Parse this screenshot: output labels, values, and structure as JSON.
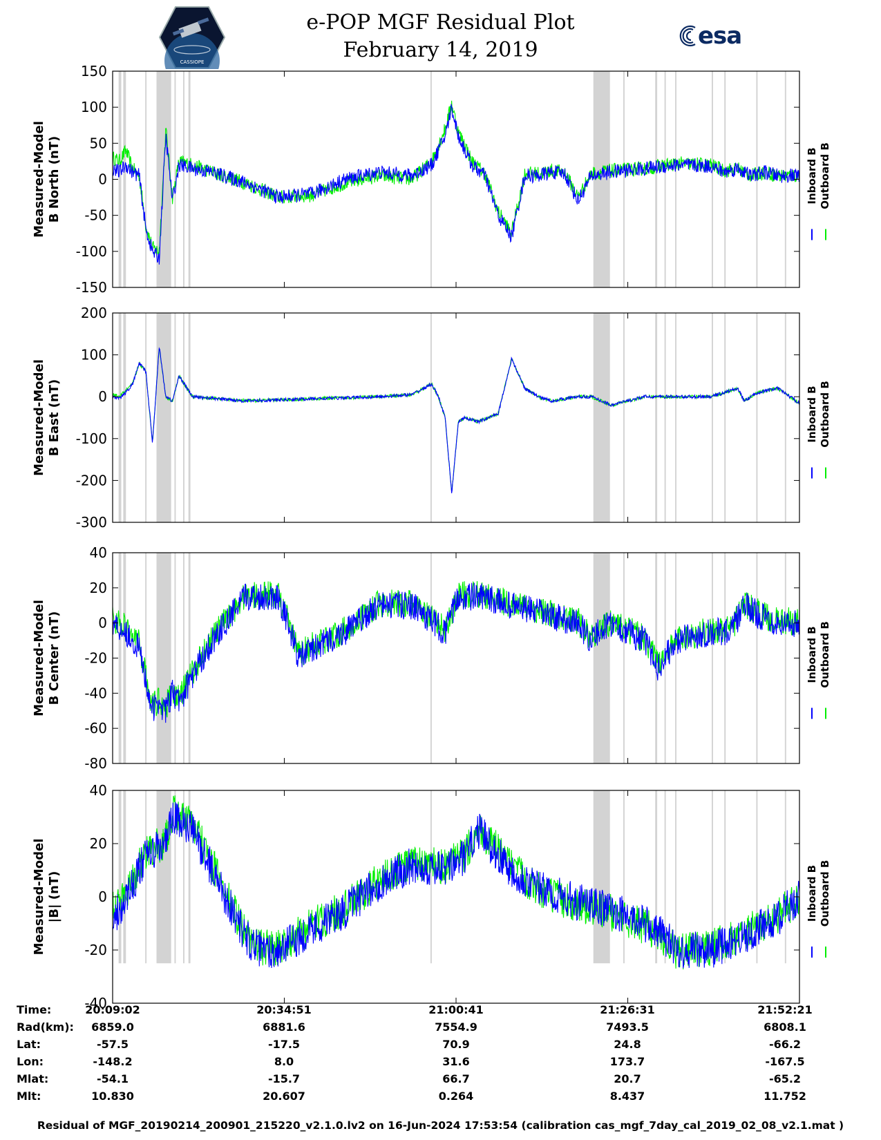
{
  "header": {
    "title_line1": "e-POP MGF Residual Plot",
    "title_line2": "February 14, 2019",
    "logo_left": "CASSIOPE",
    "logo_right": "esa"
  },
  "colors": {
    "inboard": "#0000ff",
    "outboard": "#00ee00",
    "gap_band": "#d3d3d3"
  },
  "chart_data": [
    {
      "type": "line",
      "ylabel_line1": "Measured-Model",
      "ylabel_line2": "B North (nT)",
      "ylim": [
        -150,
        150
      ],
      "yticks": [
        "150",
        "100",
        "50",
        "0",
        "-50",
        "-100",
        "-150"
      ],
      "series": [
        {
          "name": "Inboard B",
          "color": "#0000ff"
        },
        {
          "name": "Outboard B",
          "color": "#00ee00"
        }
      ],
      "x_minutes": [
        0,
        1,
        2,
        3,
        4,
        5,
        6,
        7,
        8,
        9,
        10,
        12,
        15,
        20,
        25,
        30,
        35,
        40,
        45,
        48,
        50,
        51,
        52,
        53,
        54,
        56,
        58,
        60,
        62,
        64,
        66,
        68,
        70,
        72,
        75,
        80,
        85,
        90,
        92,
        94,
        96,
        98,
        100,
        103.3
      ],
      "inboard": [
        15,
        10,
        20,
        10,
        5,
        -70,
        -100,
        -110,
        60,
        -30,
        20,
        15,
        10,
        -5,
        -25,
        -20,
        0,
        10,
        5,
        20,
        60,
        100,
        60,
        40,
        20,
        5,
        -50,
        -80,
        5,
        5,
        10,
        8,
        -30,
        5,
        10,
        15,
        20,
        18,
        10,
        15,
        5,
        10,
        5,
        5
      ],
      "outboard": [
        30,
        25,
        40,
        15,
        5,
        -65,
        -95,
        -100,
        70,
        -25,
        25,
        20,
        10,
        -5,
        -25,
        -22,
        -5,
        5,
        0,
        25,
        70,
        105,
        65,
        48,
        25,
        8,
        -45,
        -75,
        8,
        8,
        12,
        10,
        -25,
        8,
        12,
        15,
        22,
        20,
        12,
        15,
        5,
        10,
        5,
        5
      ],
      "noise": 10
    },
    {
      "type": "line",
      "ylabel_line1": "Measured-Model",
      "ylabel_line2": "B East (nT)",
      "ylim": [
        -300,
        200
      ],
      "yticks": [
        "200",
        "100",
        "0",
        "-100",
        "-200",
        "-300"
      ],
      "series": [
        {
          "name": "Inboard B",
          "color": "#0000ff"
        },
        {
          "name": "Outboard B",
          "color": "#00ee00"
        }
      ],
      "x_minutes": [
        0,
        1,
        2,
        3,
        4,
        5,
        6,
        7,
        8,
        9,
        10,
        12,
        20,
        30,
        40,
        45,
        48,
        49,
        50,
        51,
        52,
        53,
        55,
        58,
        60,
        62,
        64,
        66,
        70,
        72,
        75,
        80,
        90,
        94,
        95,
        97,
        100,
        103.3
      ],
      "inboard": [
        0,
        -5,
        10,
        30,
        80,
        60,
        -110,
        120,
        0,
        -10,
        50,
        0,
        -10,
        -5,
        0,
        5,
        30,
        0,
        -50,
        -230,
        -60,
        -50,
        -60,
        -40,
        90,
        20,
        0,
        -10,
        0,
        0,
        -20,
        0,
        0,
        20,
        -10,
        10,
        20,
        -15
      ],
      "outboard": [
        5,
        0,
        15,
        30,
        80,
        60,
        -110,
        120,
        0,
        -10,
        50,
        0,
        -10,
        -5,
        0,
        5,
        30,
        0,
        -50,
        -230,
        -60,
        -50,
        -60,
        -40,
        90,
        20,
        0,
        -10,
        0,
        0,
        -20,
        0,
        0,
        20,
        -10,
        10,
        20,
        -15
      ],
      "noise": 4
    },
    {
      "type": "line",
      "ylabel_line1": "Measured-Model",
      "ylabel_line2": "B Center (nT)",
      "ylim": [
        -80,
        40
      ],
      "yticks": [
        "40",
        "20",
        "0",
        "-20",
        "-40",
        "-60",
        "-80"
      ],
      "series": [
        {
          "name": "Inboard B",
          "color": "#0000ff"
        },
        {
          "name": "Outboard B",
          "color": "#00ee00"
        }
      ],
      "x_minutes": [
        0,
        2,
        4,
        6,
        7,
        8,
        9,
        10,
        12,
        15,
        20,
        25,
        28,
        30,
        35,
        40,
        45,
        50,
        52,
        55,
        60,
        65,
        70,
        72,
        73,
        75,
        80,
        82,
        85,
        90,
        93,
        95,
        97,
        100,
        103.3
      ],
      "inboard": [
        0,
        -5,
        -15,
        -50,
        -45,
        -50,
        -40,
        -45,
        -30,
        -10,
        15,
        15,
        -20,
        -15,
        -5,
        10,
        10,
        -5,
        15,
        15,
        10,
        5,
        0,
        -10,
        -5,
        0,
        -10,
        -25,
        -10,
        -5,
        -5,
        10,
        5,
        0,
        0
      ],
      "outboard": [
        2,
        -3,
        -12,
        -48,
        -43,
        -48,
        -38,
        -43,
        -28,
        -8,
        16,
        16,
        -18,
        -13,
        -4,
        11,
        11,
        -4,
        16,
        16,
        11,
        6,
        1,
        -9,
        -4,
        1,
        -9,
        -23,
        -9,
        -4,
        -4,
        11,
        6,
        1,
        1
      ],
      "noise": 8
    },
    {
      "type": "line",
      "ylabel_line1": "Measured-Model",
      "ylabel_line2": "|B| (nT)",
      "ylim": [
        -40,
        40
      ],
      "yticks": [
        "40",
        "20",
        "0",
        "-20",
        "-40"
      ],
      "series": [
        {
          "name": "Inboard B",
          "color": "#0000ff"
        },
        {
          "name": "Outboard B",
          "color": "#00ee00"
        }
      ],
      "x_minutes": [
        0,
        1,
        2,
        5,
        8,
        9,
        10,
        12,
        15,
        18,
        20,
        22,
        25,
        30,
        35,
        40,
        45,
        50,
        53,
        55,
        60,
        65,
        70,
        75,
        80,
        83,
        85,
        90,
        95,
        100,
        103.3
      ],
      "inboard": [
        -8,
        -5,
        0,
        15,
        20,
        30,
        28,
        25,
        10,
        -5,
        -15,
        -20,
        -20,
        -12,
        -5,
        5,
        12,
        10,
        15,
        25,
        10,
        2,
        -2,
        -5,
        -10,
        -15,
        -20,
        -20,
        -15,
        -8,
        0
      ],
      "outboard": [
        -5,
        -2,
        2,
        16,
        21,
        32,
        30,
        27,
        12,
        -4,
        -14,
        -19,
        -19,
        -11,
        -4,
        6,
        13,
        11,
        16,
        26,
        11,
        1,
        -3,
        -6,
        -11,
        -16,
        -21,
        -19,
        -14,
        -7,
        0
      ],
      "noise": 7
    }
  ],
  "gap_bands": [
    [
      0.9,
      1.3
    ],
    [
      1.6,
      2.0
    ],
    [
      4.9,
      5.1
    ],
    [
      6.6,
      8.8
    ],
    [
      9.3,
      9.5
    ],
    [
      10.6,
      10.8
    ],
    [
      11.4,
      11.7
    ],
    [
      47.8,
      48.0
    ],
    [
      72.3,
      74.8
    ],
    [
      76.8,
      77.0
    ],
    [
      81.6,
      81.9
    ],
    [
      83.0,
      83.2
    ],
    [
      84.6,
      84.8
    ],
    [
      90.1,
      90.3
    ],
    [
      92.0,
      92.2
    ],
    [
      96.8,
      97.0
    ],
    [
      101.1,
      101.3
    ]
  ],
  "legend": {
    "inboard_label": "Inboard B",
    "outboard_label": "Outboard B"
  },
  "info": {
    "labels": [
      "Time:",
      "Rad(km):",
      "Lat:",
      "Lon:",
      "Mlat:",
      "Mlt:"
    ],
    "columns": [
      {
        "time": "20:09:02",
        "rad": "6859.0",
        "lat": "-57.5",
        "lon": "-148.2",
        "mlat": "-54.1",
        "mlt": "10.830"
      },
      {
        "time": "20:34:51",
        "rad": "6881.6",
        "lat": "-17.5",
        "lon": "8.0",
        "mlat": "-15.7",
        "mlt": "20.607"
      },
      {
        "time": "21:00:41",
        "rad": "7554.9",
        "lat": "70.9",
        "lon": "31.6",
        "mlat": "66.7",
        "mlt": "0.264"
      },
      {
        "time": "21:26:31",
        "rad": "7493.5",
        "lat": "24.8",
        "lon": "173.7",
        "mlat": "20.7",
        "mlt": "8.437"
      },
      {
        "time": "21:52:21",
        "rad": "6808.1",
        "lat": "-66.2",
        "lon": "-167.5",
        "mlat": "-65.2",
        "mlt": "11.752"
      }
    ]
  },
  "footer": "Residual of MGF_20190214_200901_215220_v2.1.0.lv2 on 16-Jun-2024 17:53:54 (calibration cas_mgf_7day_cal_2019_02_08_v2.1.mat )"
}
